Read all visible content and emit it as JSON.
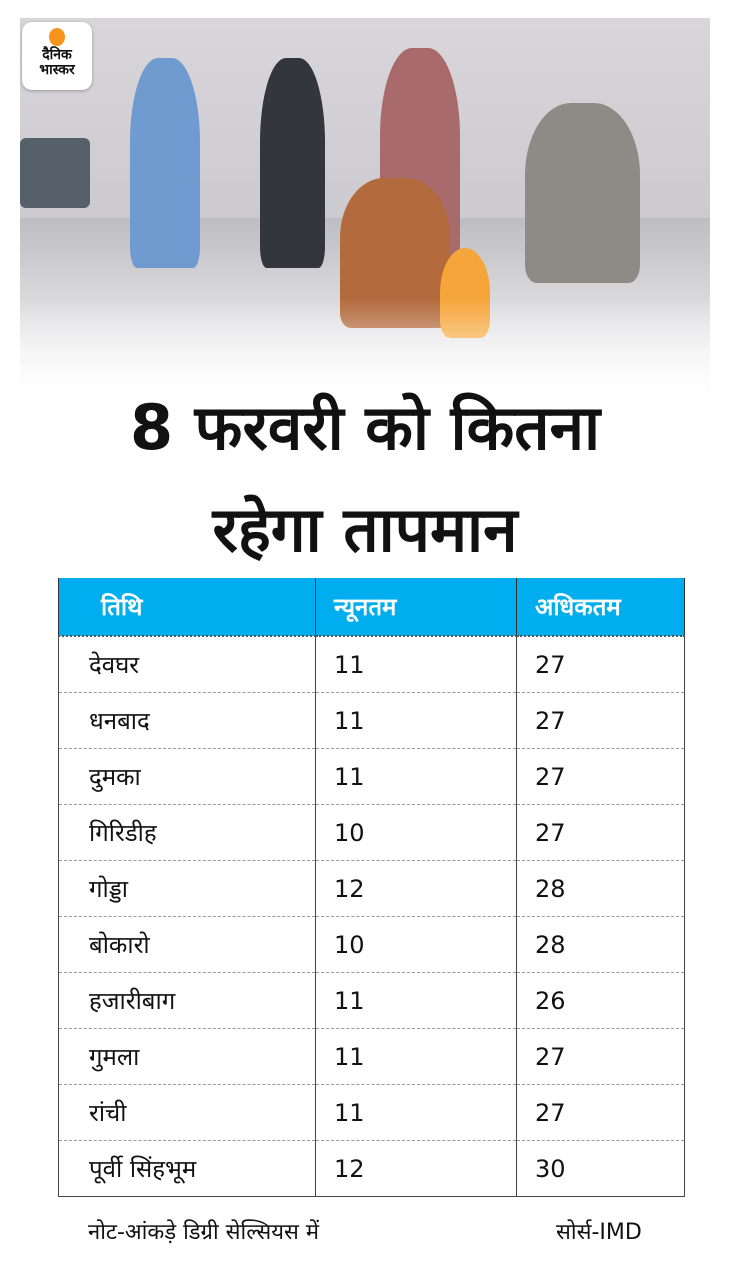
{
  "logo": {
    "line1": "दैनिक",
    "line2": "भास्कर",
    "brand_color": "#f7941d"
  },
  "title": {
    "line1": "8 फरवरी को कितना",
    "line2": "रहेगा तापमान"
  },
  "table": {
    "header_color": "#00aeef",
    "headers": [
      "तिथि",
      "न्यूनतम",
      "अधिकतम"
    ],
    "rows": [
      [
        "देवघर",
        "11",
        "27"
      ],
      [
        "धनबाद",
        "11",
        "27"
      ],
      [
        "दुमका",
        "11",
        "27"
      ],
      [
        "गिरिडीह",
        "10",
        "27"
      ],
      [
        "गोड्डा",
        "12",
        "28"
      ],
      [
        "बोकारो",
        "10",
        "28"
      ],
      [
        "हजारीबाग",
        "11",
        "26"
      ],
      [
        "गुमला",
        "11",
        "27"
      ],
      [
        "रांची",
        "11",
        "27"
      ],
      [
        "पूर्वी सिंहभूम",
        "12",
        "30"
      ]
    ]
  },
  "footer": {
    "note": "नोट-आंकड़े डिग्री सेल्सियस में",
    "source": "सोर्स-IMD"
  }
}
